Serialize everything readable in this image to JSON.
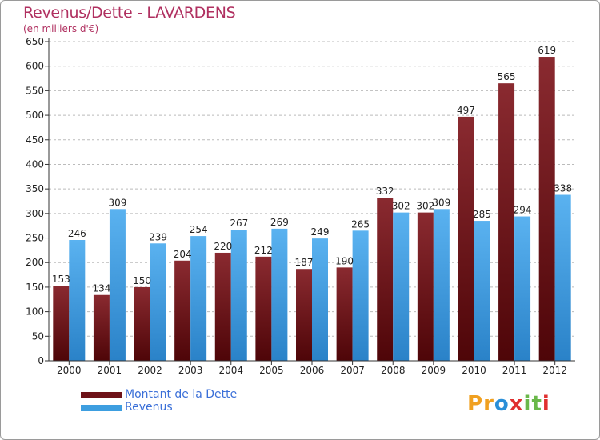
{
  "title": "Revenus/Dette - LAVARDENS",
  "subtitle": "(en milliers d'€)",
  "brand": {
    "name": "Proxiti",
    "letters": [
      "P",
      "r",
      "o",
      "x",
      "i",
      "t",
      "i"
    ],
    "colors": [
      "#f0a020",
      "#f0a020",
      "#2a8fd8",
      "#e03030",
      "#6ab84a",
      "#6ab84a",
      "#e03030"
    ]
  },
  "colors": {
    "dette": "#6e1218",
    "revenus": "#3d9ee0",
    "grid": "#bbbbbb",
    "axis": "#333333"
  },
  "legend": [
    {
      "label": "Montant de la Dette",
      "color": "#6e1218"
    },
    {
      "label": "Revenus",
      "color": "#3d9ee0"
    }
  ],
  "chart_data": {
    "type": "bar",
    "title": "Revenus/Dette - LAVARDENS",
    "subtitle": "(en milliers d'€)",
    "xlabel": "",
    "ylabel": "",
    "ylim": [
      0,
      650
    ],
    "ytick_step": 50,
    "grid": true,
    "legend_position": "bottom-left",
    "categories": [
      "2000",
      "2001",
      "2002",
      "2003",
      "2004",
      "2005",
      "2006",
      "2007",
      "2008",
      "2009",
      "2010",
      "2011",
      "2012"
    ],
    "series": [
      {
        "name": "Montant de la Dette",
        "values": [
          153,
          134,
          150,
          204,
          220,
          212,
          187,
          190,
          332,
          302,
          497,
          565,
          619
        ]
      },
      {
        "name": "Revenus",
        "values": [
          246,
          309,
          239,
          254,
          267,
          269,
          249,
          265,
          302,
          309,
          285,
          294,
          338
        ]
      }
    ]
  }
}
